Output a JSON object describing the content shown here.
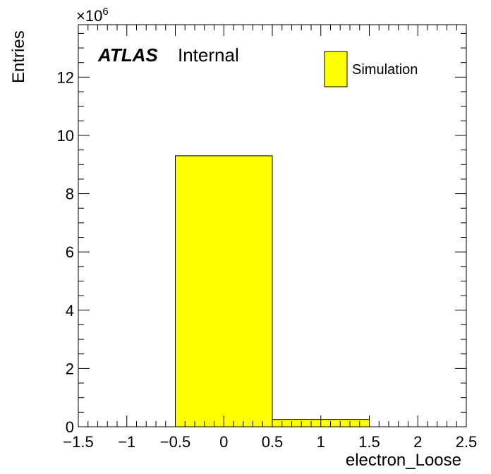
{
  "chart_data": {
    "type": "bar",
    "histogram": true,
    "bins": [
      {
        "x_low": -0.5,
        "x_high": 0.5,
        "value": 9300000
      },
      {
        "x_low": 0.5,
        "x_high": 1.5,
        "value": 250000
      }
    ],
    "xlabel": "electron_Loose",
    "ylabel": "Entries",
    "xlim": [
      -1.5,
      2.5
    ],
    "ylim": [
      0,
      13800000
    ],
    "x_ticks": [
      -1.5,
      -1,
      -0.5,
      0,
      0.5,
      1,
      1.5,
      2,
      2.5
    ],
    "x_tick_labels": [
      "−1.5",
      "−1",
      "−0.5",
      "0",
      "0.5",
      "1",
      "1.5",
      "2",
      "2.5"
    ],
    "y_ticks": [
      0,
      2,
      4,
      6,
      8,
      10,
      12
    ],
    "y_tick_labels": [
      "0",
      "2",
      "4",
      "6",
      "8",
      "10",
      "12"
    ],
    "y_multiplier": {
      "base": "×10",
      "exponent": "6",
      "factor": 1000000
    },
    "legend": {
      "entries": [
        {
          "name": "Simulation",
          "color": "#ffff00"
        }
      ],
      "placement": "top-right"
    },
    "fill_color": "#ffff00",
    "line_color": "#000000",
    "grid": false,
    "annotations": {
      "atlas": "ATLAS",
      "label": "Internal"
    }
  }
}
